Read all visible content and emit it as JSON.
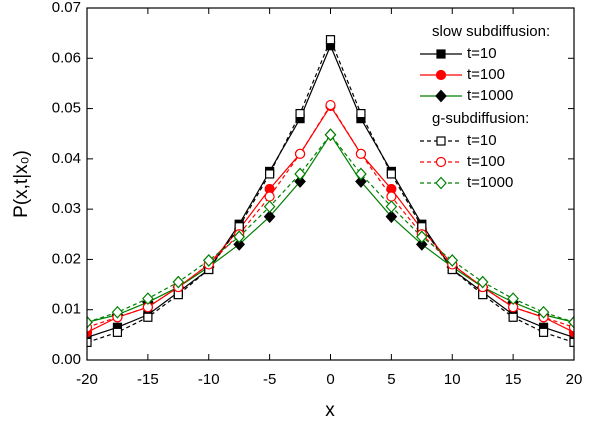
{
  "chart_data": {
    "type": "line",
    "x_label": "x",
    "y_label": "P(x,t|x₀)",
    "x": [
      -20,
      -17.5,
      -15,
      -12.5,
      -10,
      -7.5,
      -5,
      -2.5,
      0,
      2.5,
      5,
      7.5,
      10,
      12.5,
      15,
      17.5,
      20
    ],
    "xlim": [
      -20,
      20
    ],
    "xticks": [
      -20,
      -15,
      -10,
      -5,
      0,
      5,
      10,
      15,
      20
    ],
    "ylim": [
      0,
      0.07
    ],
    "yticks": [
      {
        "value": 0,
        "label": "0.00"
      },
      {
        "value": 0.01,
        "label": "0.01"
      },
      {
        "value": 0.02,
        "label": "0.02"
      },
      {
        "value": 0.03,
        "label": "0.03"
      },
      {
        "value": 0.04,
        "label": "0.04"
      },
      {
        "value": 0.05,
        "label": "0.05"
      },
      {
        "value": 0.06,
        "label": "0.06"
      },
      {
        "value": 0.07,
        "label": "0.07"
      }
    ],
    "legend_position": "upper right",
    "groups": [
      {
        "title": "slow subdiffusion:",
        "dash": "none",
        "series": [
          {
            "name": "t=10",
            "color": "#000000",
            "marker_color": "#000000",
            "marker": "square",
            "filled": true,
            "values": [
              0.0045,
              0.0065,
              0.009,
              0.0135,
              0.018,
              0.027,
              0.0375,
              0.048,
              0.0625,
              0.048,
              0.0375,
              0.027,
              0.018,
              0.0135,
              0.009,
              0.0065,
              0.0045
            ]
          },
          {
            "name": "t=100",
            "color": "#ff0000",
            "marker_color": "#ff0000",
            "marker": "circle",
            "filled": true,
            "values": [
              0.0055,
              0.0085,
              0.0105,
              0.0145,
              0.019,
              0.026,
              0.034,
              0.041,
              0.0505,
              0.041,
              0.034,
              0.026,
              0.019,
              0.0145,
              0.0105,
              0.0085,
              0.0055
            ]
          },
          {
            "name": "t=1000",
            "color": "#008000",
            "marker_color": "#000000",
            "marker": "diamond",
            "filled": true,
            "values": [
              0.0075,
              0.009,
              0.0115,
              0.0145,
              0.0185,
              0.023,
              0.0285,
              0.0355,
              0.0448,
              0.0355,
              0.0285,
              0.023,
              0.0185,
              0.0145,
              0.0115,
              0.009,
              0.0075
            ]
          }
        ]
      },
      {
        "title": "g-subdiffusion:",
        "dash": "4,3",
        "series": [
          {
            "name": "t=10",
            "color": "#000000",
            "marker_color": "#000000",
            "marker": "square",
            "filled": false,
            "values": [
              0.0035,
              0.0055,
              0.0085,
              0.013,
              0.018,
              0.0265,
              0.037,
              0.049,
              0.0637,
              0.049,
              0.037,
              0.0265,
              0.018,
              0.013,
              0.0085,
              0.0055,
              0.0035
            ]
          },
          {
            "name": "t=100",
            "color": "#ff0000",
            "marker_color": "#ff0000",
            "marker": "circle",
            "filled": false,
            "values": [
              0.0065,
              0.0085,
              0.0105,
              0.0145,
              0.019,
              0.025,
              0.0325,
              0.041,
              0.0507,
              0.041,
              0.0325,
              0.025,
              0.019,
              0.0145,
              0.0105,
              0.0085,
              0.0065
            ]
          },
          {
            "name": "t=1000",
            "color": "#008000",
            "marker_color": "#008000",
            "marker": "diamond",
            "filled": false,
            "values": [
              0.0075,
              0.0095,
              0.0122,
              0.0155,
              0.0198,
              0.0245,
              0.0305,
              0.037,
              0.0448,
              0.037,
              0.0305,
              0.0245,
              0.0198,
              0.0155,
              0.0122,
              0.0095,
              0.0075
            ]
          }
        ]
      }
    ]
  }
}
